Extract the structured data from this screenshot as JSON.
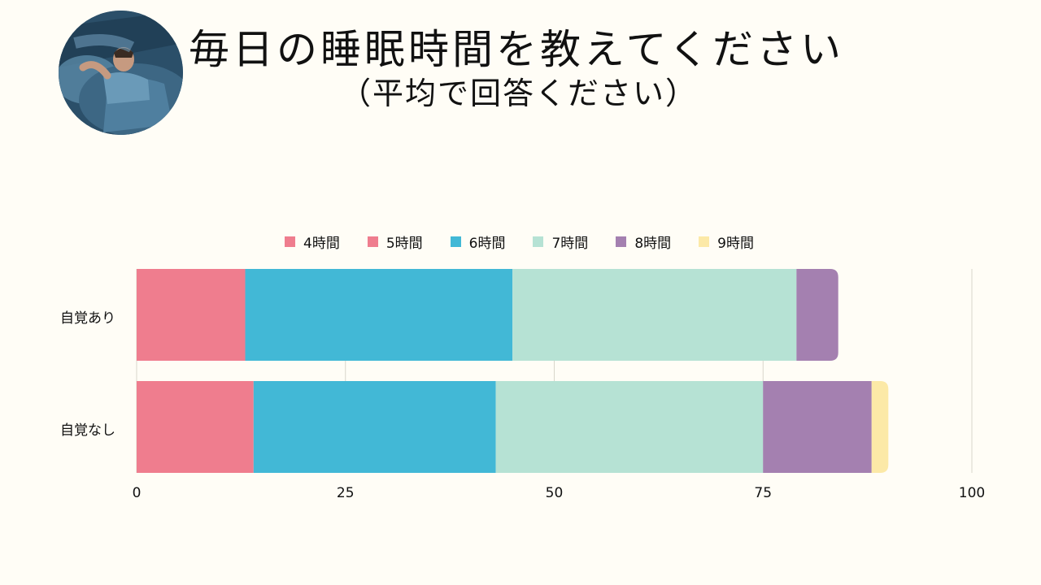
{
  "header": {
    "title": "毎日の睡眠時間を教えてください",
    "subtitle": "（平均で回答ください）"
  },
  "chart_data": {
    "type": "bar",
    "orientation": "horizontal",
    "stacked": true,
    "categories": [
      "自覚あり",
      "自覚なし"
    ],
    "series": [
      {
        "name": "4時間",
        "color": "#ef7d8e",
        "values": [
          0,
          0
        ]
      },
      {
        "name": "5時間",
        "color": "#ef7d8e",
        "values": [
          13,
          14
        ]
      },
      {
        "name": "6時間",
        "color": "#42b8d6",
        "values": [
          32,
          29
        ]
      },
      {
        "name": "7時間",
        "color": "#b6e2d4",
        "values": [
          34,
          32
        ]
      },
      {
        "name": "8時間",
        "color": "#a480b0",
        "values": [
          5,
          13
        ]
      },
      {
        "name": "9時間",
        "color": "#fce9a7",
        "values": [
          0,
          2
        ]
      }
    ],
    "xlim": [
      0,
      100
    ],
    "xticks": [
      "0",
      "25",
      "50",
      "75",
      "100"
    ],
    "grid": true,
    "legend": "top"
  }
}
